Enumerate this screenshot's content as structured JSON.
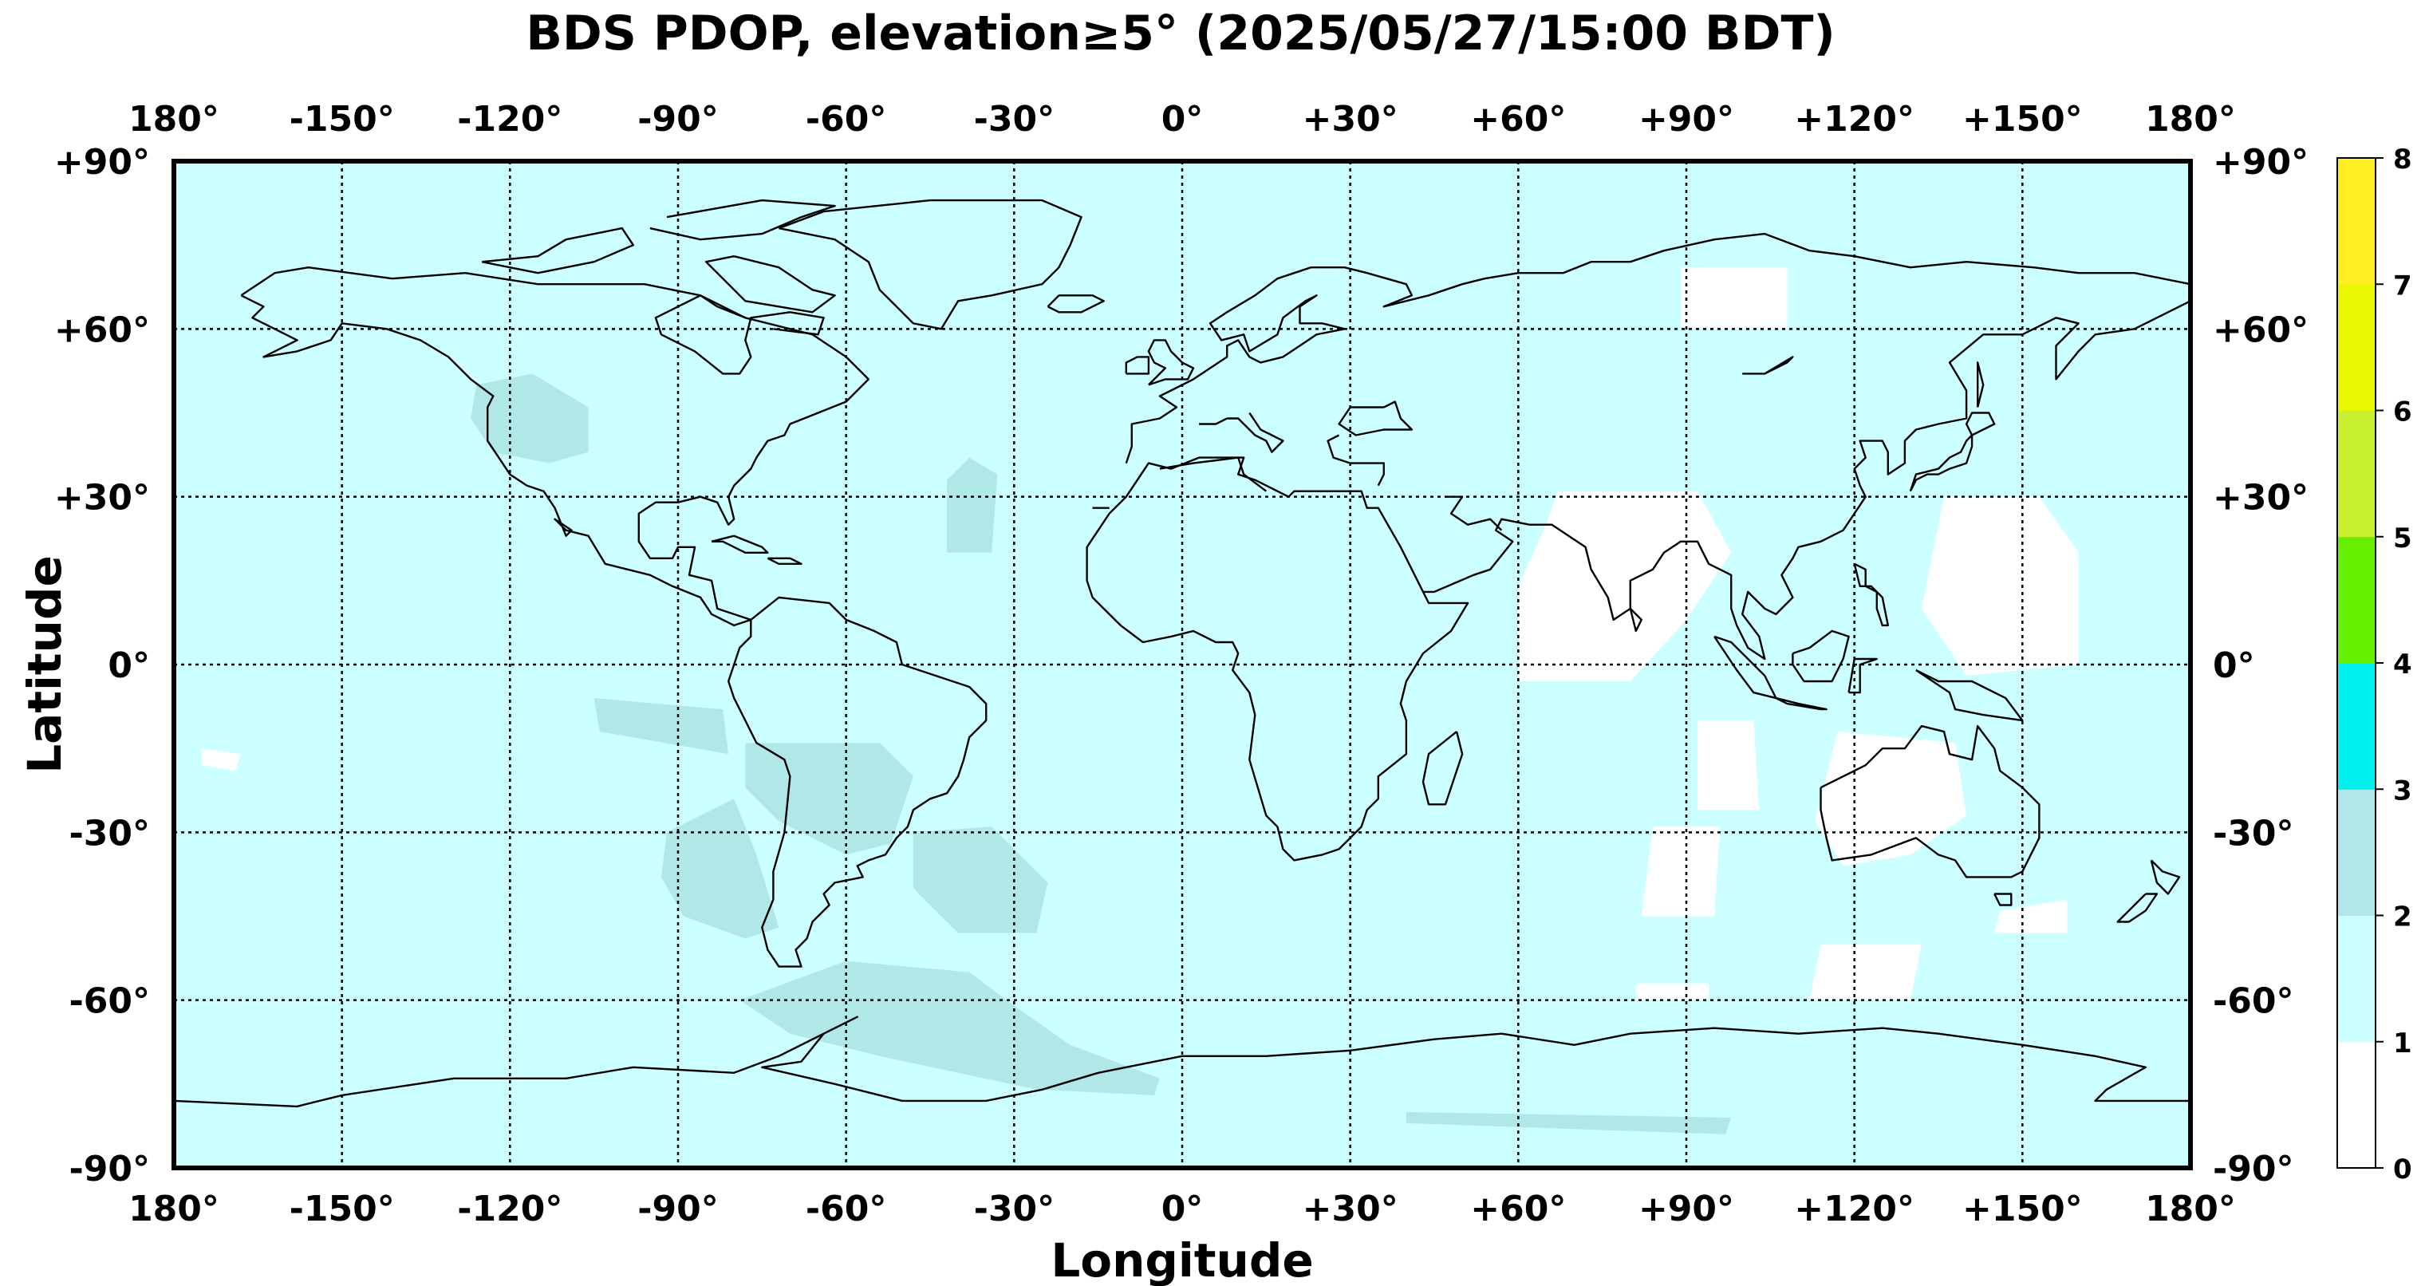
{
  "title": "BDS PDOP, elevation≥5° (2025/05/27/15:00 BDT)",
  "xlabel": "Longitude",
  "ylabel": "Latitude",
  "lon_ticks": [
    {
      "value": -180,
      "label": "180°"
    },
    {
      "value": -150,
      "label": "-150°"
    },
    {
      "value": -120,
      "label": "-120°"
    },
    {
      "value": -90,
      "label": "-90°"
    },
    {
      "value": -60,
      "label": "-60°"
    },
    {
      "value": -30,
      "label": "-30°"
    },
    {
      "value": 0,
      "label": "0°"
    },
    {
      "value": 30,
      "label": "+30°"
    },
    {
      "value": 60,
      "label": "+60°"
    },
    {
      "value": 90,
      "label": "+90°"
    },
    {
      "value": 120,
      "label": "+120°"
    },
    {
      "value": 150,
      "label": "+150°"
    },
    {
      "value": 180,
      "label": "180°"
    }
  ],
  "lat_ticks": [
    {
      "value": 90,
      "label": "+90°"
    },
    {
      "value": 60,
      "label": "+60°"
    },
    {
      "value": 30,
      "label": "+30°"
    },
    {
      "value": 0,
      "label": "0°"
    },
    {
      "value": -30,
      "label": "-30°"
    },
    {
      "value": -60,
      "label": "-60°"
    },
    {
      "value": -90,
      "label": "-90°"
    }
  ],
  "colorbar": {
    "ticks": [
      "0",
      "1",
      "2",
      "3",
      "4",
      "5",
      "6",
      "7",
      "8"
    ],
    "colors": [
      "#ffffff",
      "#ccffff",
      "#b0e8e8",
      "#00f0f0",
      "#66f000",
      "#c8f030",
      "#e8f800",
      "#ffee22"
    ]
  },
  "map": {
    "lon_range": [
      -180,
      180
    ],
    "lat_range": [
      -90,
      90
    ],
    "background_pdop_class": 1,
    "colors": {
      "ocean_land_fill": "#ccffff",
      "pdop_2_3": "#b0e8e8",
      "pdop_0_1": "#ffffff",
      "coast": "#000000"
    },
    "regions": [
      {
        "pdop_class": 2,
        "polygon": [
          [
            -126,
            50
          ],
          [
            -116,
            52
          ],
          [
            -106,
            46
          ],
          [
            -106,
            38
          ],
          [
            -113,
            36
          ],
          [
            -123,
            38
          ],
          [
            -127,
            44
          ]
        ]
      },
      {
        "pdop_class": 2,
        "polygon": [
          [
            -88,
            -28
          ],
          [
            -80,
            -24
          ],
          [
            -76,
            -34
          ],
          [
            -72,
            -47
          ],
          [
            -78,
            -49
          ],
          [
            -89,
            -45
          ],
          [
            -93,
            -38
          ],
          [
            -92,
            -30
          ]
        ]
      },
      {
        "pdop_class": 2,
        "polygon": [
          [
            -78,
            -14
          ],
          [
            -54,
            -14
          ],
          [
            -48,
            -20
          ],
          [
            -52,
            -32
          ],
          [
            -60,
            -34
          ],
          [
            -72,
            -28
          ],
          [
            -78,
            -22
          ]
        ]
      },
      {
        "pdop_class": 2,
        "polygon": [
          [
            -48,
            -30
          ],
          [
            -34,
            -29
          ],
          [
            -24,
            -39
          ],
          [
            -26,
            -48
          ],
          [
            -40,
            -48
          ],
          [
            -48,
            -40
          ]
        ]
      },
      {
        "pdop_class": 2,
        "polygon": [
          [
            -60,
            -53
          ],
          [
            -38,
            -55
          ],
          [
            -30,
            -61
          ],
          [
            -20,
            -68
          ],
          [
            -4,
            -74
          ],
          [
            -5,
            -77
          ],
          [
            -26,
            -76
          ],
          [
            -54,
            -70
          ],
          [
            -70,
            -66
          ],
          [
            -79,
            -60
          ]
        ]
      },
      {
        "pdop_class": 2,
        "polygon": [
          [
            -42,
            20
          ],
          [
            -34,
            20
          ],
          [
            -33,
            34
          ],
          [
            -38,
            37
          ],
          [
            -42,
            33
          ]
        ]
      },
      {
        "pdop_class": 2,
        "polygon": [
          [
            -105,
            -6
          ],
          [
            -82,
            -8
          ],
          [
            -81,
            -16
          ],
          [
            -104,
            -12
          ]
        ]
      },
      {
        "pdop_class": 2,
        "polygon": [
          [
            40,
            -80
          ],
          [
            98,
            -81
          ],
          [
            97,
            -84
          ],
          [
            40,
            -82
          ]
        ]
      },
      {
        "pdop_class": 0,
        "polygon": [
          [
            67,
            31
          ],
          [
            92,
            31
          ],
          [
            98,
            20
          ],
          [
            90,
            8
          ],
          [
            80,
            -3
          ],
          [
            60,
            -3
          ],
          [
            60,
            14
          ],
          [
            65,
            25
          ]
        ]
      },
      {
        "pdop_class": 0,
        "polygon": [
          [
            136,
            30
          ],
          [
            153,
            30
          ],
          [
            160,
            20
          ],
          [
            160,
            0
          ],
          [
            140,
            -2
          ],
          [
            132,
            10
          ]
        ]
      },
      {
        "pdop_class": 0,
        "polygon": [
          [
            117,
            -12
          ],
          [
            138,
            -14
          ],
          [
            140,
            -27
          ],
          [
            130,
            -34
          ],
          [
            118,
            -36
          ],
          [
            113,
            -28
          ]
        ]
      },
      {
        "pdop_class": 0,
        "polygon": [
          [
            92,
            -10
          ],
          [
            102,
            -10
          ],
          [
            103,
            -26
          ],
          [
            92,
            -26
          ]
        ]
      },
      {
        "pdop_class": 0,
        "polygon": [
          [
            84,
            -29
          ],
          [
            96,
            -29
          ],
          [
            95,
            -45
          ],
          [
            82,
            -45
          ]
        ]
      },
      {
        "pdop_class": 0,
        "polygon": [
          [
            146,
            -44
          ],
          [
            158,
            -42
          ],
          [
            158,
            -48
          ],
          [
            145,
            -48
          ]
        ]
      },
      {
        "pdop_class": 0,
        "polygon": [
          [
            114,
            -50
          ],
          [
            132,
            -50
          ],
          [
            130,
            -60
          ],
          [
            112,
            -60
          ]
        ]
      },
      {
        "pdop_class": 0,
        "polygon": [
          [
            81,
            -57
          ],
          [
            94,
            -57
          ],
          [
            94,
            -60
          ],
          [
            81,
            -60
          ]
        ]
      },
      {
        "pdop_class": 0,
        "polygon": [
          [
            89,
            71
          ],
          [
            108,
            71
          ],
          [
            108,
            60
          ],
          [
            89,
            60
          ]
        ]
      },
      {
        "pdop_class": 0,
        "polygon": [
          [
            -175,
            -15
          ],
          [
            -168,
            -16
          ],
          [
            -169,
            -19
          ],
          [
            -175,
            -18
          ]
        ]
      }
    ]
  }
}
